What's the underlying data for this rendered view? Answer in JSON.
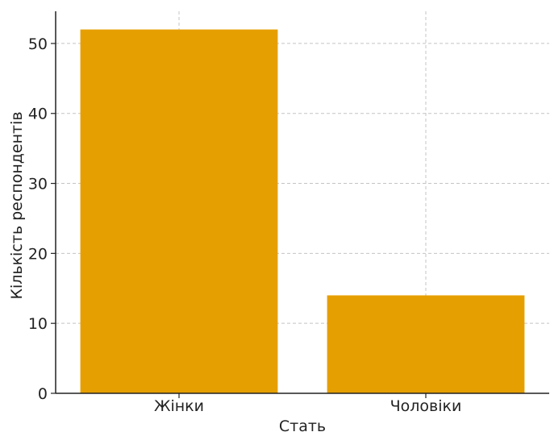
{
  "chart_data": {
    "type": "bar",
    "title": "",
    "xlabel": "Стать",
    "ylabel": "Кількість респондентів",
    "categories": [
      "Жінки",
      "Чоловіки"
    ],
    "values": [
      52,
      14
    ],
    "ylim": [
      0,
      54.6
    ],
    "yticks": [
      0,
      10,
      20,
      30,
      40,
      50
    ],
    "grid": true,
    "legend": "none",
    "bar_color": "#E69F00"
  }
}
